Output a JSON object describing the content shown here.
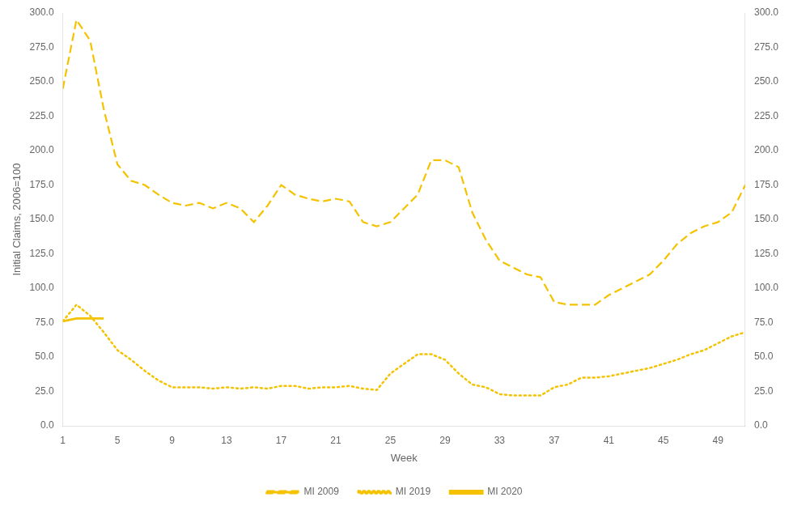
{
  "chart_data": {
    "type": "line",
    "xlabel": "Week",
    "ylabel": "Initial Claims, 2006=100",
    "color": "#F5C200",
    "x": [
      1,
      2,
      3,
      4,
      5,
      6,
      7,
      8,
      9,
      10,
      11,
      12,
      13,
      14,
      15,
      16,
      17,
      18,
      19,
      20,
      21,
      22,
      23,
      24,
      25,
      26,
      27,
      28,
      29,
      30,
      31,
      32,
      33,
      34,
      35,
      36,
      37,
      38,
      39,
      40,
      41,
      42,
      43,
      44,
      45,
      46,
      47,
      48,
      49,
      50,
      51
    ],
    "series": [
      {
        "name": "MI 2009",
        "line_style": "dashed",
        "values": [
          245,
          295,
          280,
          230,
          190,
          178,
          175,
          168,
          162,
          160,
          162,
          158,
          162,
          158,
          148,
          160,
          175,
          168,
          165,
          163,
          165,
          163,
          148,
          145,
          148,
          158,
          168,
          193,
          193,
          188,
          155,
          135,
          120,
          115,
          110,
          108,
          90,
          88,
          88,
          88,
          95,
          100,
          105,
          110,
          120,
          132,
          140,
          145,
          148,
          155,
          175
        ]
      },
      {
        "name": "MI 2019",
        "line_style": "dotted",
        "values": [
          76,
          88,
          80,
          68,
          55,
          48,
          40,
          33,
          28,
          28,
          28,
          27,
          28,
          27,
          28,
          27,
          29,
          29,
          27,
          28,
          28,
          29,
          27,
          26,
          38,
          45,
          52,
          52,
          48,
          38,
          30,
          28,
          23,
          22,
          22,
          22,
          28,
          30,
          35,
          35,
          36,
          38,
          40,
          42,
          45,
          48,
          52,
          55,
          60,
          65,
          68
        ]
      },
      {
        "name": "MI 2020",
        "line_style": "solid",
        "values": [
          76,
          78,
          78,
          78,
          null,
          null,
          null,
          null,
          null,
          null,
          null,
          null,
          null,
          null,
          null,
          null,
          null,
          null,
          null,
          null,
          null,
          null,
          null,
          null,
          null,
          null,
          null,
          null,
          null,
          null,
          null,
          null,
          null,
          null,
          null,
          null,
          null,
          null,
          null,
          null,
          null,
          null,
          null,
          null,
          null,
          null,
          null,
          null,
          null,
          null,
          null
        ]
      }
    ],
    "xlim": [
      1,
      51
    ],
    "xticks": [
      1,
      5,
      9,
      13,
      17,
      21,
      25,
      29,
      33,
      37,
      41,
      45,
      49
    ],
    "ylim": [
      0,
      300
    ],
    "yticks": [
      {
        "value": 0,
        "label": "0.0"
      },
      {
        "value": 25,
        "label": "25.0"
      },
      {
        "value": 50,
        "label": "50.0"
      },
      {
        "value": 75,
        "label": "75.0"
      },
      {
        "value": 100,
        "label": "100.0"
      },
      {
        "value": 125,
        "label": "125.0"
      },
      {
        "value": 150,
        "label": "150.0"
      },
      {
        "value": 175,
        "label": "175.0"
      },
      {
        "value": 200,
        "label": "200.0"
      },
      {
        "value": 225,
        "label": "225.0"
      },
      {
        "value": 250,
        "label": "250.0"
      },
      {
        "value": 275,
        "label": "275.0"
      },
      {
        "value": 300,
        "label": "300.0"
      }
    ],
    "y2lim": [
      0,
      300
    ],
    "y2ticks": [
      {
        "value": 0,
        "label": "0.0"
      },
      {
        "value": 25,
        "label": "25.0"
      },
      {
        "value": 50,
        "label": "50.0"
      },
      {
        "value": 75,
        "label": "75.0"
      },
      {
        "value": 100,
        "label": "100.0"
      },
      {
        "value": 125,
        "label": "125.0"
      },
      {
        "value": 150,
        "label": "150.0"
      },
      {
        "value": 175,
        "label": "175.0"
      },
      {
        "value": 200,
        "label": "200.0"
      },
      {
        "value": 225,
        "label": "225.0"
      },
      {
        "value": 250,
        "label": "250.0"
      },
      {
        "value": 275,
        "label": "275.0"
      },
      {
        "value": 300,
        "label": "300.0"
      }
    ],
    "grid": false,
    "legend": "bottom"
  }
}
